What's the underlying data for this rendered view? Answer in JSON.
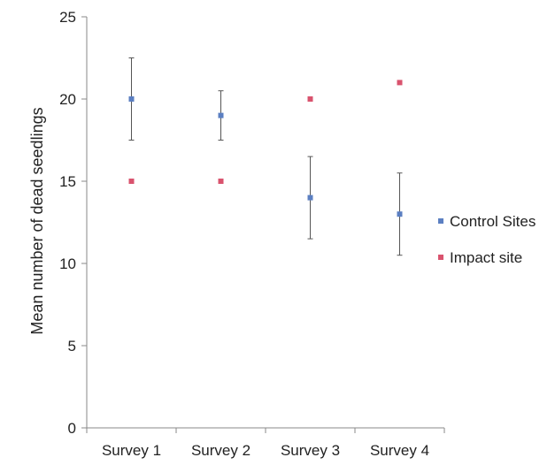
{
  "chart_data": {
    "type": "scatter",
    "categories": [
      "Survey 1",
      "Survey 2",
      "Survey 3",
      "Survey 4"
    ],
    "ylabel": "Mean number of dead seedlings",
    "xlabel": "",
    "ylim": [
      0,
      25
    ],
    "yticks": [
      0,
      5,
      10,
      15,
      20,
      25
    ],
    "grid": false,
    "legend_position": "right",
    "series": [
      {
        "name": "Control Sites",
        "color": "#5b7fc2",
        "values": [
          20,
          19,
          14,
          13
        ],
        "error_low": [
          17.5,
          17.5,
          11.5,
          10.5
        ],
        "error_high": [
          22.5,
          20.5,
          16.5,
          15.5
        ]
      },
      {
        "name": "Impact site",
        "color": "#d9536e",
        "values": [
          15,
          15,
          20,
          21
        ]
      }
    ]
  }
}
